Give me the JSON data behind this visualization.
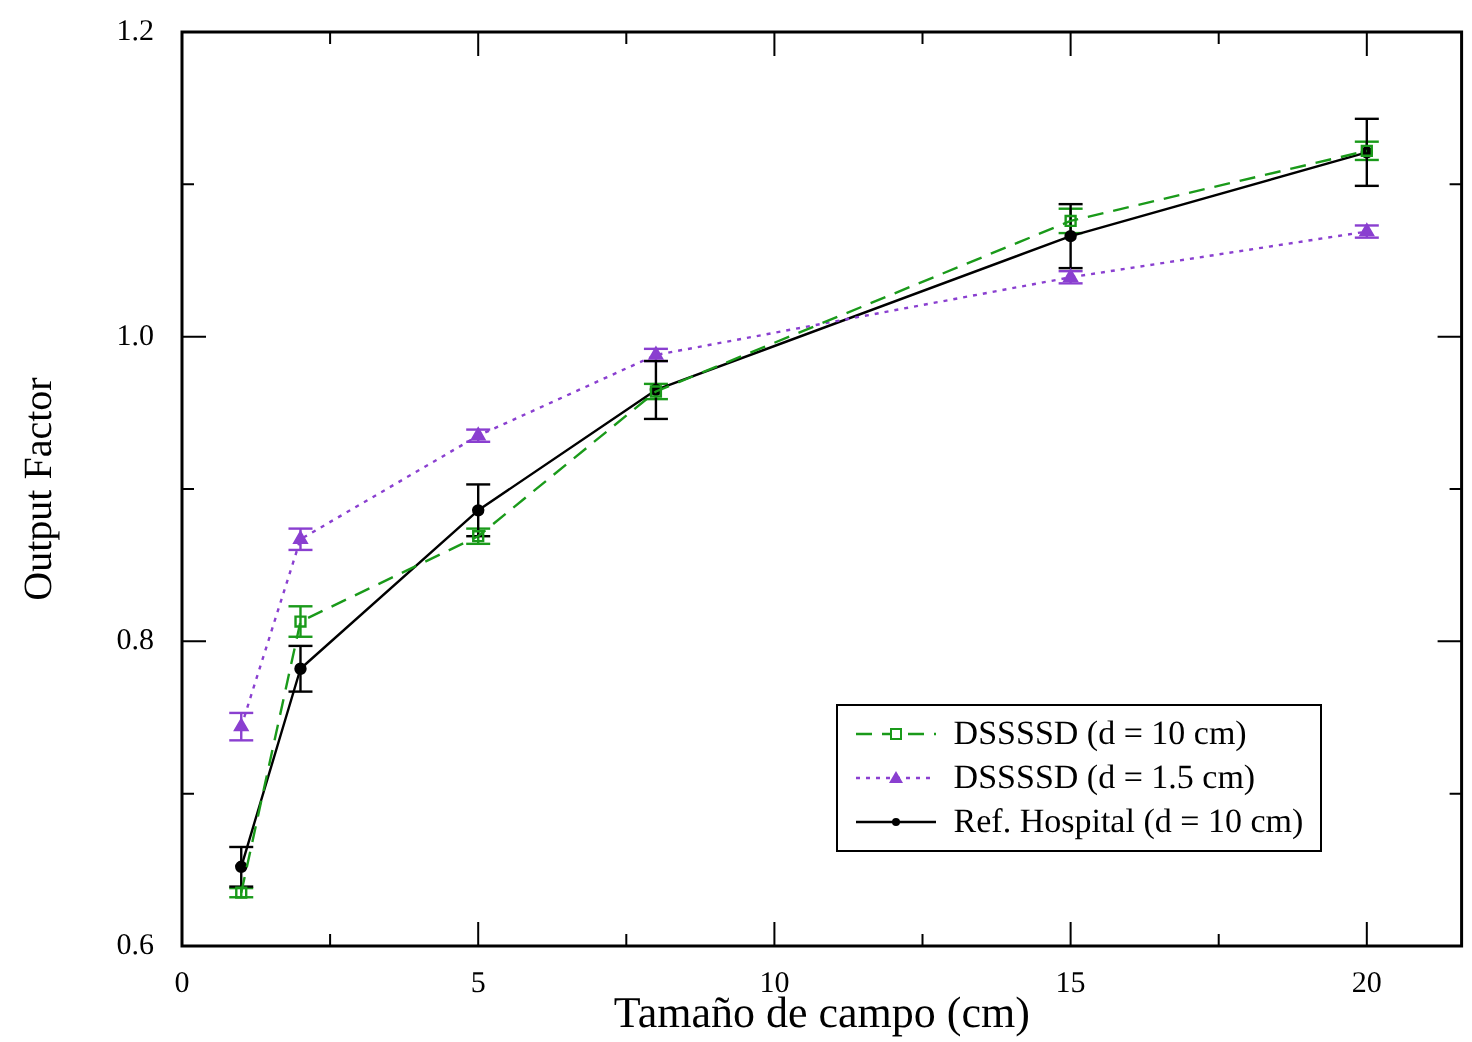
{
  "chart_data": {
    "type": "line",
    "xlabel": "Tamaño de campo (cm)",
    "ylabel": "Output Factor",
    "x": [
      1,
      2,
      5,
      8,
      15,
      20
    ],
    "xlim": [
      0,
      21.6
    ],
    "xticks": [
      0,
      {
        "value": 2.5,
        "label": null
      },
      5,
      {
        "value": 7.5,
        "label": null
      },
      10,
      {
        "value": 12.5,
        "label": null
      },
      15,
      {
        "value": 17.5,
        "label": null
      },
      20
    ],
    "ylim": [
      0.6,
      1.2
    ],
    "yticks": [
      0.6,
      {
        "value": 0.7,
        "label": null
      },
      0.8,
      {
        "value": 0.9,
        "label": null
      },
      {
        "value": 1,
        "label": "1.0"
      },
      {
        "value": 1.1,
        "label": null
      },
      1.2
    ],
    "grid": false,
    "legend": "bottom right",
    "series": [
      {
        "name": "DSSSSD (d = 10 cm)",
        "color": "#1a9a1a",
        "marker": "square",
        "line_style": "dashed",
        "values": [
          0.635,
          0.813,
          0.869,
          0.964,
          1.076,
          1.122
        ],
        "errors": [
          0.003,
          0.01,
          0.005,
          0.005,
          0.008,
          0.006
        ]
      },
      {
        "name": "DSSSSD (d = 1.5 cm)",
        "color": "#8a3fd0",
        "marker": "triangle",
        "line_style": "dotted",
        "values": [
          0.744,
          0.867,
          0.935,
          0.988,
          1.039,
          1.069
        ],
        "errors": [
          0.009,
          0.007,
          0.004,
          0.004,
          0.004,
          0.004
        ]
      },
      {
        "name": "Ref. Hospital (d = 10 cm)",
        "color": "#000000",
        "marker": "circle",
        "line_style": "solid",
        "values": [
          0.652,
          0.782,
          0.886,
          0.965,
          1.066,
          1.121
        ],
        "errors": [
          0.013,
          0.015,
          0.017,
          0.019,
          0.021,
          0.022
        ]
      }
    ]
  }
}
